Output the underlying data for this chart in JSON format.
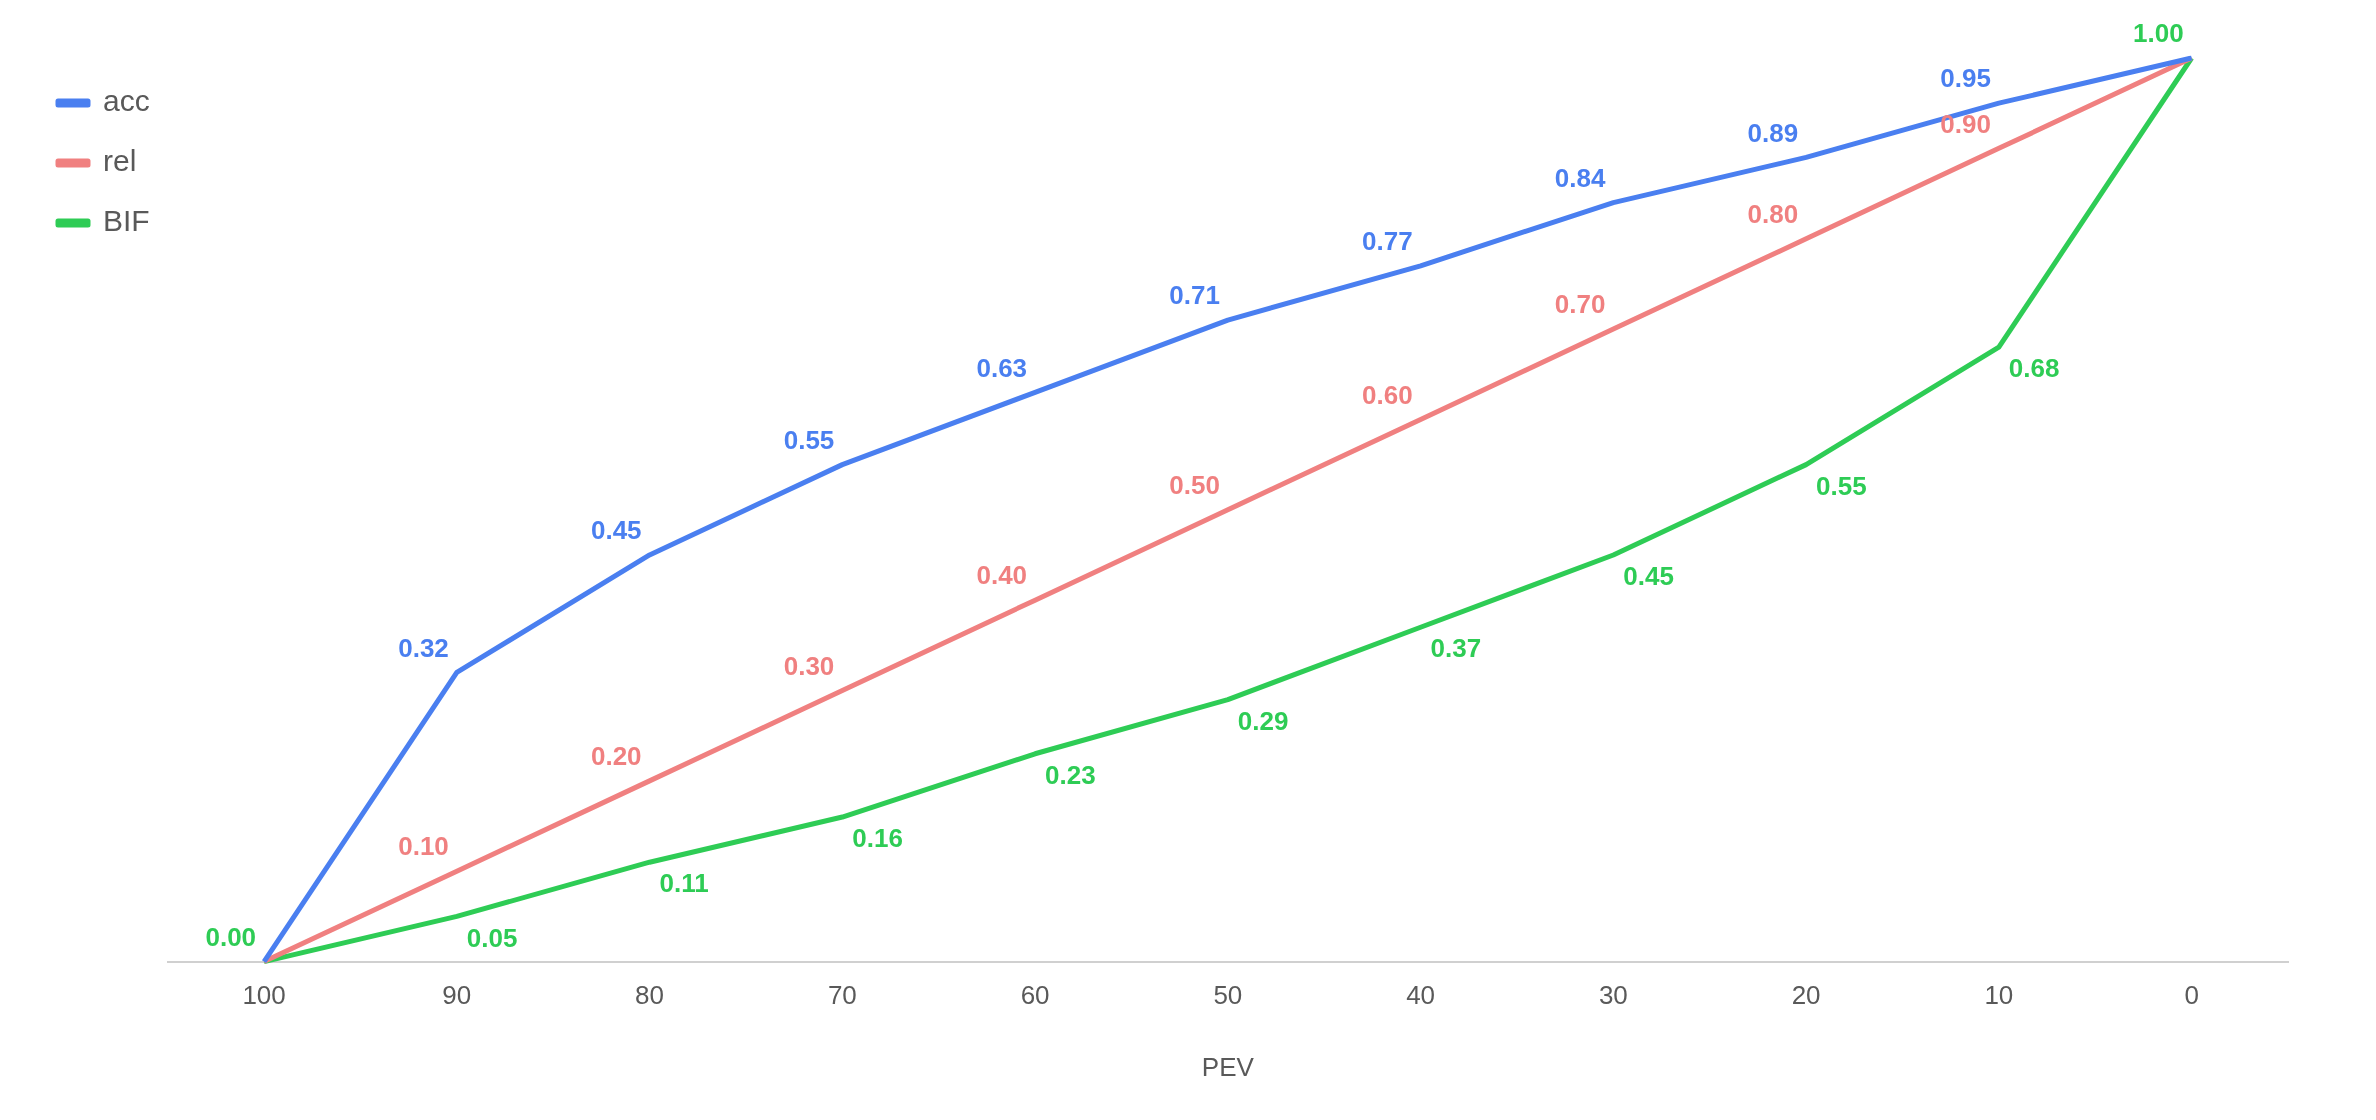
{
  "chart_data": {
    "type": "line",
    "xlabel": "PEV",
    "categories": [
      "100",
      "90",
      "80",
      "70",
      "60",
      "50",
      "40",
      "30",
      "20",
      "10",
      "0"
    ],
    "series": [
      {
        "name": "acc",
        "color": "#4a7ff0",
        "values": [
          0,
          0.32,
          0.45,
          0.55,
          0.63,
          0.71,
          0.77,
          0.84,
          0.89,
          0.95,
          1.0
        ],
        "value_labels": [
          null,
          "0.32",
          "0.45",
          "0.55",
          "0.63",
          "0.71",
          "0.77",
          "0.84",
          "0.89",
          "0.95",
          null
        ]
      },
      {
        "name": "rel",
        "color": "#f08080",
        "values": [
          0,
          0.1,
          0.2,
          0.3,
          0.4,
          0.5,
          0.6,
          0.7,
          0.8,
          0.9,
          1.0
        ],
        "value_labels": [
          null,
          "0.10",
          "0.20",
          "0.30",
          "0.40",
          "0.50",
          "0.60",
          "0.70",
          "0.80",
          "0.90",
          null
        ]
      },
      {
        "name": "BIF",
        "color": "#2ecc55",
        "values": [
          0,
          0.05,
          0.11,
          0.16,
          0.23,
          0.29,
          0.37,
          0.45,
          0.55,
          0.68,
          1.0
        ],
        "value_labels": [
          "0.00",
          "0.05",
          "0.11",
          "0.16",
          "0.23",
          "0.29",
          "0.37",
          "0.45",
          "0.55",
          "0.68",
          "1.00"
        ]
      }
    ],
    "legend": "top left",
    "grid": false,
    "tick_labels": "x",
    "marker": "none",
    "line_style": "solid"
  }
}
